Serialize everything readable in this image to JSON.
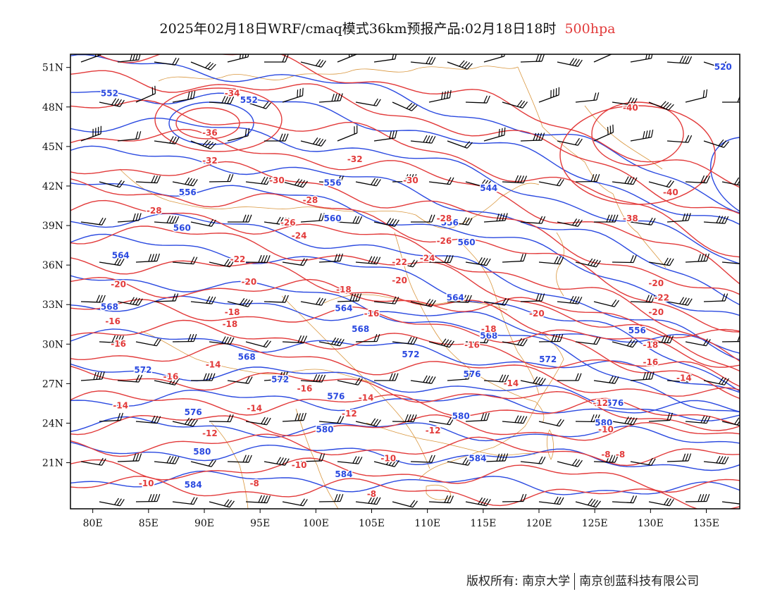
{
  "title": {
    "main": "2025年02月18日WRF/cmaq模式36km预报产品:02月18日18时",
    "level": "500hpa"
  },
  "colors": {
    "height": "#2a49e0",
    "temperature": "#e23a3a",
    "border": "#d9963d",
    "wind": "#000000",
    "level_label": "#e23a3a"
  },
  "map": {
    "lon_range": [
      78,
      138
    ],
    "lat_range": [
      17.5,
      52
    ],
    "x_ticks": [
      "80E",
      "85E",
      "90E",
      "95E",
      "100E",
      "105E",
      "110E",
      "115E",
      "120E",
      "125E",
      "130E",
      "135E"
    ],
    "y_ticks": [
      "51N",
      "48N",
      "45N",
      "42N",
      "39N",
      "36N",
      "33N",
      "30N",
      "27N",
      "24N",
      "21N"
    ],
    "height_contours_dagpm": [
      520,
      544,
      552,
      556,
      560,
      564,
      568,
      572,
      576,
      580,
      584
    ],
    "height_labels": [
      {
        "text": "552",
        "lon": 81.5,
        "lat": 49
      },
      {
        "text": "552",
        "lon": 94,
        "lat": 48.5
      },
      {
        "text": "520",
        "lon": 136.5,
        "lat": 51
      },
      {
        "text": "556",
        "lon": 88.5,
        "lat": 41.5
      },
      {
        "text": "556",
        "lon": 101.5,
        "lat": 42.2
      },
      {
        "text": "544",
        "lon": 115.5,
        "lat": 41.8
      },
      {
        "text": "560",
        "lon": 88,
        "lat": 38.8
      },
      {
        "text": "560",
        "lon": 101.5,
        "lat": 39.5
      },
      {
        "text": "556",
        "lon": 112,
        "lat": 39.2
      },
      {
        "text": "560",
        "lon": 113.5,
        "lat": 37.7
      },
      {
        "text": "564",
        "lon": 82.5,
        "lat": 36.7
      },
      {
        "text": "564",
        "lon": 112.5,
        "lat": 33.5
      },
      {
        "text": "564",
        "lon": 102.5,
        "lat": 32.7
      },
      {
        "text": "568",
        "lon": 81.5,
        "lat": 32.8
      },
      {
        "text": "568",
        "lon": 104,
        "lat": 31.1
      },
      {
        "text": "568",
        "lon": 115.5,
        "lat": 30.6
      },
      {
        "text": "556",
        "lon": 128.8,
        "lat": 31
      },
      {
        "text": "568",
        "lon": 93.8,
        "lat": 29
      },
      {
        "text": "572",
        "lon": 84.5,
        "lat": 28
      },
      {
        "text": "572",
        "lon": 96.8,
        "lat": 27.3
      },
      {
        "text": "572",
        "lon": 108.5,
        "lat": 29.2
      },
      {
        "text": "572",
        "lon": 120.8,
        "lat": 28.8
      },
      {
        "text": "576",
        "lon": 114,
        "lat": 27.7
      },
      {
        "text": "576",
        "lon": 101.8,
        "lat": 26
      },
      {
        "text": "576",
        "lon": 89,
        "lat": 24.8
      },
      {
        "text": "576",
        "lon": 126.8,
        "lat": 25.5
      },
      {
        "text": "580",
        "lon": 100.8,
        "lat": 23.5
      },
      {
        "text": "580",
        "lon": 113,
        "lat": 24.5
      },
      {
        "text": "580",
        "lon": 125.8,
        "lat": 24
      },
      {
        "text": "580",
        "lon": 89.8,
        "lat": 21.8
      },
      {
        "text": "584",
        "lon": 114.5,
        "lat": 21.3
      },
      {
        "text": "584",
        "lon": 89,
        "lat": 19.3
      },
      {
        "text": "584",
        "lon": 102.5,
        "lat": 20.1
      }
    ],
    "temperature_contours_c": [
      -40,
      -36,
      -34,
      -32,
      -30,
      -28,
      -26,
      -24,
      -22,
      -20,
      -18,
      -16,
      -14,
      -12,
      -10,
      -8
    ],
    "temperature_labels": [
      {
        "text": "-34",
        "lon": 92.5,
        "lat": 49
      },
      {
        "text": "-36",
        "lon": 90.5,
        "lat": 46
      },
      {
        "text": "-40",
        "lon": 128.2,
        "lat": 47.9
      },
      {
        "text": "-32",
        "lon": 90.5,
        "lat": 43.9
      },
      {
        "text": "-32",
        "lon": 103.5,
        "lat": 44
      },
      {
        "text": "-30",
        "lon": 96.5,
        "lat": 42.4
      },
      {
        "text": "-30",
        "lon": 108.5,
        "lat": 42.4
      },
      {
        "text": "-40",
        "lon": 131.8,
        "lat": 41.5
      },
      {
        "text": "-28",
        "lon": 85.5,
        "lat": 40.1
      },
      {
        "text": "-28",
        "lon": 99.5,
        "lat": 40.9
      },
      {
        "text": "-28",
        "lon": 111.5,
        "lat": 39.5
      },
      {
        "text": "-26",
        "lon": 97.5,
        "lat": 39.2
      },
      {
        "text": "-24",
        "lon": 98.5,
        "lat": 38.2
      },
      {
        "text": "-26",
        "lon": 111.5,
        "lat": 37.8
      },
      {
        "text": "-38",
        "lon": 128.2,
        "lat": 39.5
      },
      {
        "text": "-22",
        "lon": 93,
        "lat": 36.4
      },
      {
        "text": "-22",
        "lon": 107.5,
        "lat": 36.2
      },
      {
        "text": "-24",
        "lon": 110,
        "lat": 36.5
      },
      {
        "text": "-20",
        "lon": 82.3,
        "lat": 34.5
      },
      {
        "text": "-20",
        "lon": 94,
        "lat": 34.7
      },
      {
        "text": "-20",
        "lon": 107.5,
        "lat": 34.8
      },
      {
        "text": "-18",
        "lon": 102.5,
        "lat": 34.1
      },
      {
        "text": "-20",
        "lon": 130.5,
        "lat": 34.6
      },
      {
        "text": "-22",
        "lon": 131,
        "lat": 33.5
      },
      {
        "text": "-20",
        "lon": 130.5,
        "lat": 32.4
      },
      {
        "text": "-16",
        "lon": 81.8,
        "lat": 31.7
      },
      {
        "text": "-18",
        "lon": 92.5,
        "lat": 32.4
      },
      {
        "text": "-18",
        "lon": 92.3,
        "lat": 31.5
      },
      {
        "text": "-16",
        "lon": 105,
        "lat": 32.3
      },
      {
        "text": "-20",
        "lon": 119.8,
        "lat": 32.3
      },
      {
        "text": "-18",
        "lon": 115.5,
        "lat": 31.1
      },
      {
        "text": "-16",
        "lon": 82.3,
        "lat": 30
      },
      {
        "text": "-16",
        "lon": 114,
        "lat": 29.9
      },
      {
        "text": "-18",
        "lon": 130,
        "lat": 29.9
      },
      {
        "text": "-14",
        "lon": 90.8,
        "lat": 28.4
      },
      {
        "text": "-16",
        "lon": 130,
        "lat": 28.6
      },
      {
        "text": "-16",
        "lon": 87,
        "lat": 27.5
      },
      {
        "text": "-16",
        "lon": 99,
        "lat": 26.6
      },
      {
        "text": "-14",
        "lon": 117.5,
        "lat": 27
      },
      {
        "text": "-14",
        "lon": 133,
        "lat": 27.4
      },
      {
        "text": "-14",
        "lon": 104.5,
        "lat": 25.9
      },
      {
        "text": "-14",
        "lon": 82.5,
        "lat": 25.3
      },
      {
        "text": "-14",
        "lon": 94.5,
        "lat": 25.1
      },
      {
        "text": "-12",
        "lon": 103,
        "lat": 24.7
      },
      {
        "text": "-12",
        "lon": 125.5,
        "lat": 25.5
      },
      {
        "text": "-12",
        "lon": 90.5,
        "lat": 23.2
      },
      {
        "text": "-12",
        "lon": 110.5,
        "lat": 23.4
      },
      {
        "text": "-10",
        "lon": 126,
        "lat": 23.5
      },
      {
        "text": "-10",
        "lon": 98.5,
        "lat": 20.8
      },
      {
        "text": "-10",
        "lon": 106.5,
        "lat": 21.3
      },
      {
        "text": "-8",
        "lon": 126,
        "lat": 21.6
      },
      {
        "text": "-8",
        "lon": 127.3,
        "lat": 21.6
      },
      {
        "text": "-10",
        "lon": 84.8,
        "lat": 19.4
      },
      {
        "text": "-8",
        "lon": 94.5,
        "lat": 19.4
      },
      {
        "text": "-8",
        "lon": 105,
        "lat": 18.6
      }
    ]
  },
  "footer": {
    "left": "版权所有: 南京大学",
    "right": "南京创蓝科技有限公司"
  }
}
